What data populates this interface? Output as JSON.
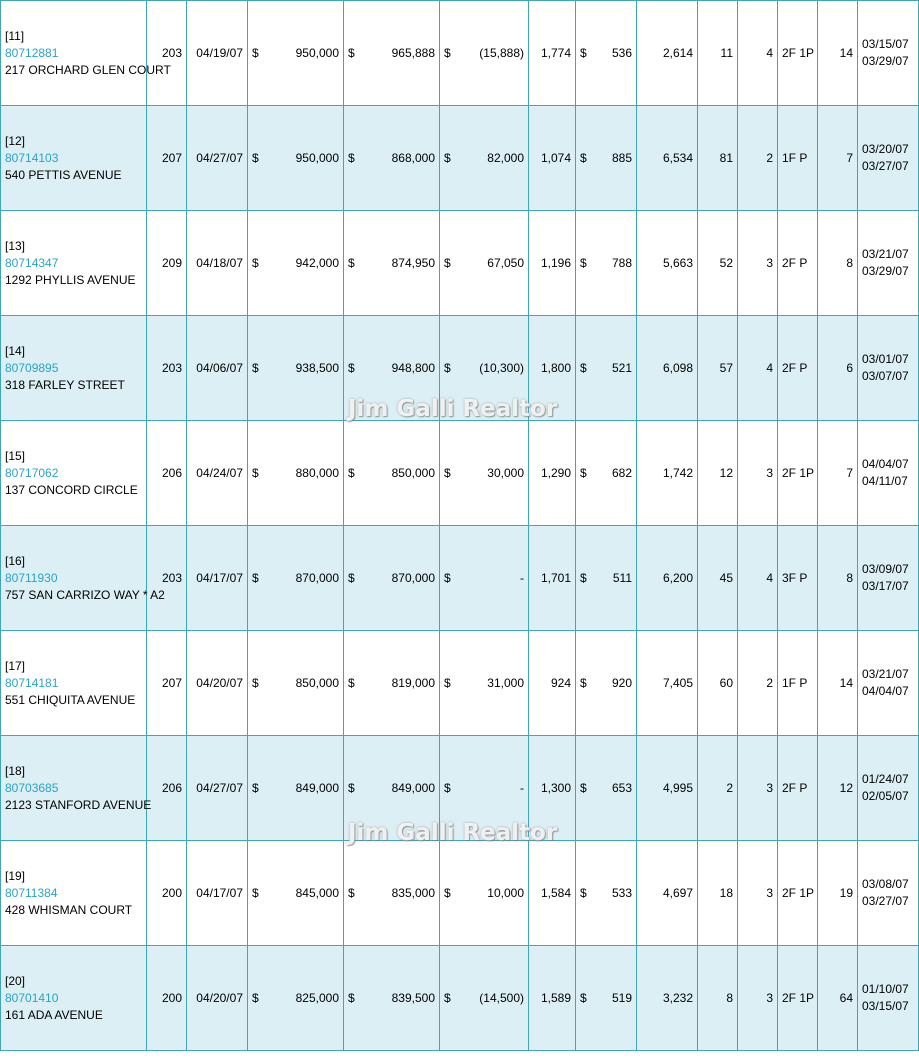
{
  "watermark": "Jim Galli Realtor",
  "rows": [
    {
      "index": "[11]",
      "mls": "80712881",
      "address": "217 ORCHARD GLEN COURT",
      "area": "203",
      "date": "04/19/07",
      "list_price": "950,000",
      "sale_price": "965,888",
      "difference": "(15,888)",
      "sqft": "1,774",
      "price_per_sqft": "536",
      "lot": "2,614",
      "dom": "11",
      "beds": "4",
      "baths": "2F 1P",
      "age": "14",
      "date1": "03/15/07",
      "date2": "03/29/07"
    },
    {
      "index": "[12]",
      "mls": "80714103",
      "address": "540 PETTIS AVENUE",
      "area": "207",
      "date": "04/27/07",
      "list_price": "950,000",
      "sale_price": "868,000",
      "difference": "82,000",
      "sqft": "1,074",
      "price_per_sqft": "885",
      "lot": "6,534",
      "dom": "81",
      "beds": "2",
      "baths": "1F P",
      "age": "7",
      "date1": "03/20/07",
      "date2": "03/27/07"
    },
    {
      "index": "[13]",
      "mls": "80714347",
      "address": "1292 PHYLLIS AVENUE",
      "area": "209",
      "date": "04/18/07",
      "list_price": "942,000",
      "sale_price": "874,950",
      "difference": "67,050",
      "sqft": "1,196",
      "price_per_sqft": "788",
      "lot": "5,663",
      "dom": "52",
      "beds": "3",
      "baths": "2F P",
      "age": "8",
      "date1": "03/21/07",
      "date2": "03/29/07"
    },
    {
      "index": "[14]",
      "mls": "80709895",
      "address": "318 FARLEY STREET",
      "area": "203",
      "date": "04/06/07",
      "list_price": "938,500",
      "sale_price": "948,800",
      "difference": "(10,300)",
      "sqft": "1,800",
      "price_per_sqft": "521",
      "lot": "6,098",
      "dom": "57",
      "beds": "4",
      "baths": "2F P",
      "age": "6",
      "date1": "03/01/07",
      "date2": "03/07/07"
    },
    {
      "index": "[15]",
      "mls": "80717062",
      "address": "137 CONCORD CIRCLE",
      "area": "206",
      "date": "04/24/07",
      "list_price": "880,000",
      "sale_price": "850,000",
      "difference": "30,000",
      "sqft": "1,290",
      "price_per_sqft": "682",
      "lot": "1,742",
      "dom": "12",
      "beds": "3",
      "baths": "2F 1P",
      "age": "7",
      "date1": "04/04/07",
      "date2": "04/11/07"
    },
    {
      "index": "[16]",
      "mls": "80711930",
      "address": "757 SAN CARRIZO WAY * A2",
      "area": "203",
      "date": "04/17/07",
      "list_price": "870,000",
      "sale_price": "870,000",
      "difference": "-",
      "sqft": "1,701",
      "price_per_sqft": "511",
      "lot": "6,200",
      "dom": "45",
      "beds": "4",
      "baths": "3F P",
      "age": "8",
      "date1": "03/09/07",
      "date2": "03/17/07"
    },
    {
      "index": "[17]",
      "mls": "80714181",
      "address": "551 CHIQUITA AVENUE",
      "area": "207",
      "date": "04/20/07",
      "list_price": "850,000",
      "sale_price": "819,000",
      "difference": "31,000",
      "sqft": "924",
      "price_per_sqft": "920",
      "lot": "7,405",
      "dom": "60",
      "beds": "2",
      "baths": "1F P",
      "age": "14",
      "date1": "03/21/07",
      "date2": "04/04/07"
    },
    {
      "index": "[18]",
      "mls": "80703685",
      "address": "2123 STANFORD AVENUE",
      "area": "206",
      "date": "04/27/07",
      "list_price": "849,000",
      "sale_price": "849,000",
      "difference": "-",
      "sqft": "1,300",
      "price_per_sqft": "653",
      "lot": "4,995",
      "dom": "2",
      "beds": "3",
      "baths": "2F P",
      "age": "12",
      "date1": "01/24/07",
      "date2": "02/05/07"
    },
    {
      "index": "[19]",
      "mls": "80711384",
      "address": "428 WHISMAN COURT",
      "area": "200",
      "date": "04/17/07",
      "list_price": "845,000",
      "sale_price": "835,000",
      "difference": "10,000",
      "sqft": "1,584",
      "price_per_sqft": "533",
      "lot": "4,697",
      "dom": "18",
      "beds": "3",
      "baths": "2F 1P",
      "age": "19",
      "date1": "03/08/07",
      "date2": "03/27/07"
    },
    {
      "index": "[20]",
      "mls": "80701410",
      "address": "161 ADA AVENUE",
      "area": "200",
      "date": "04/20/07",
      "list_price": "825,000",
      "sale_price": "839,500",
      "difference": "(14,500)",
      "sqft": "1,589",
      "price_per_sqft": "519",
      "lot": "3,232",
      "dom": "8",
      "beds": "3",
      "baths": "2F 1P",
      "age": "64",
      "date1": "01/10/07",
      "date2": "03/15/07"
    }
  ]
}
